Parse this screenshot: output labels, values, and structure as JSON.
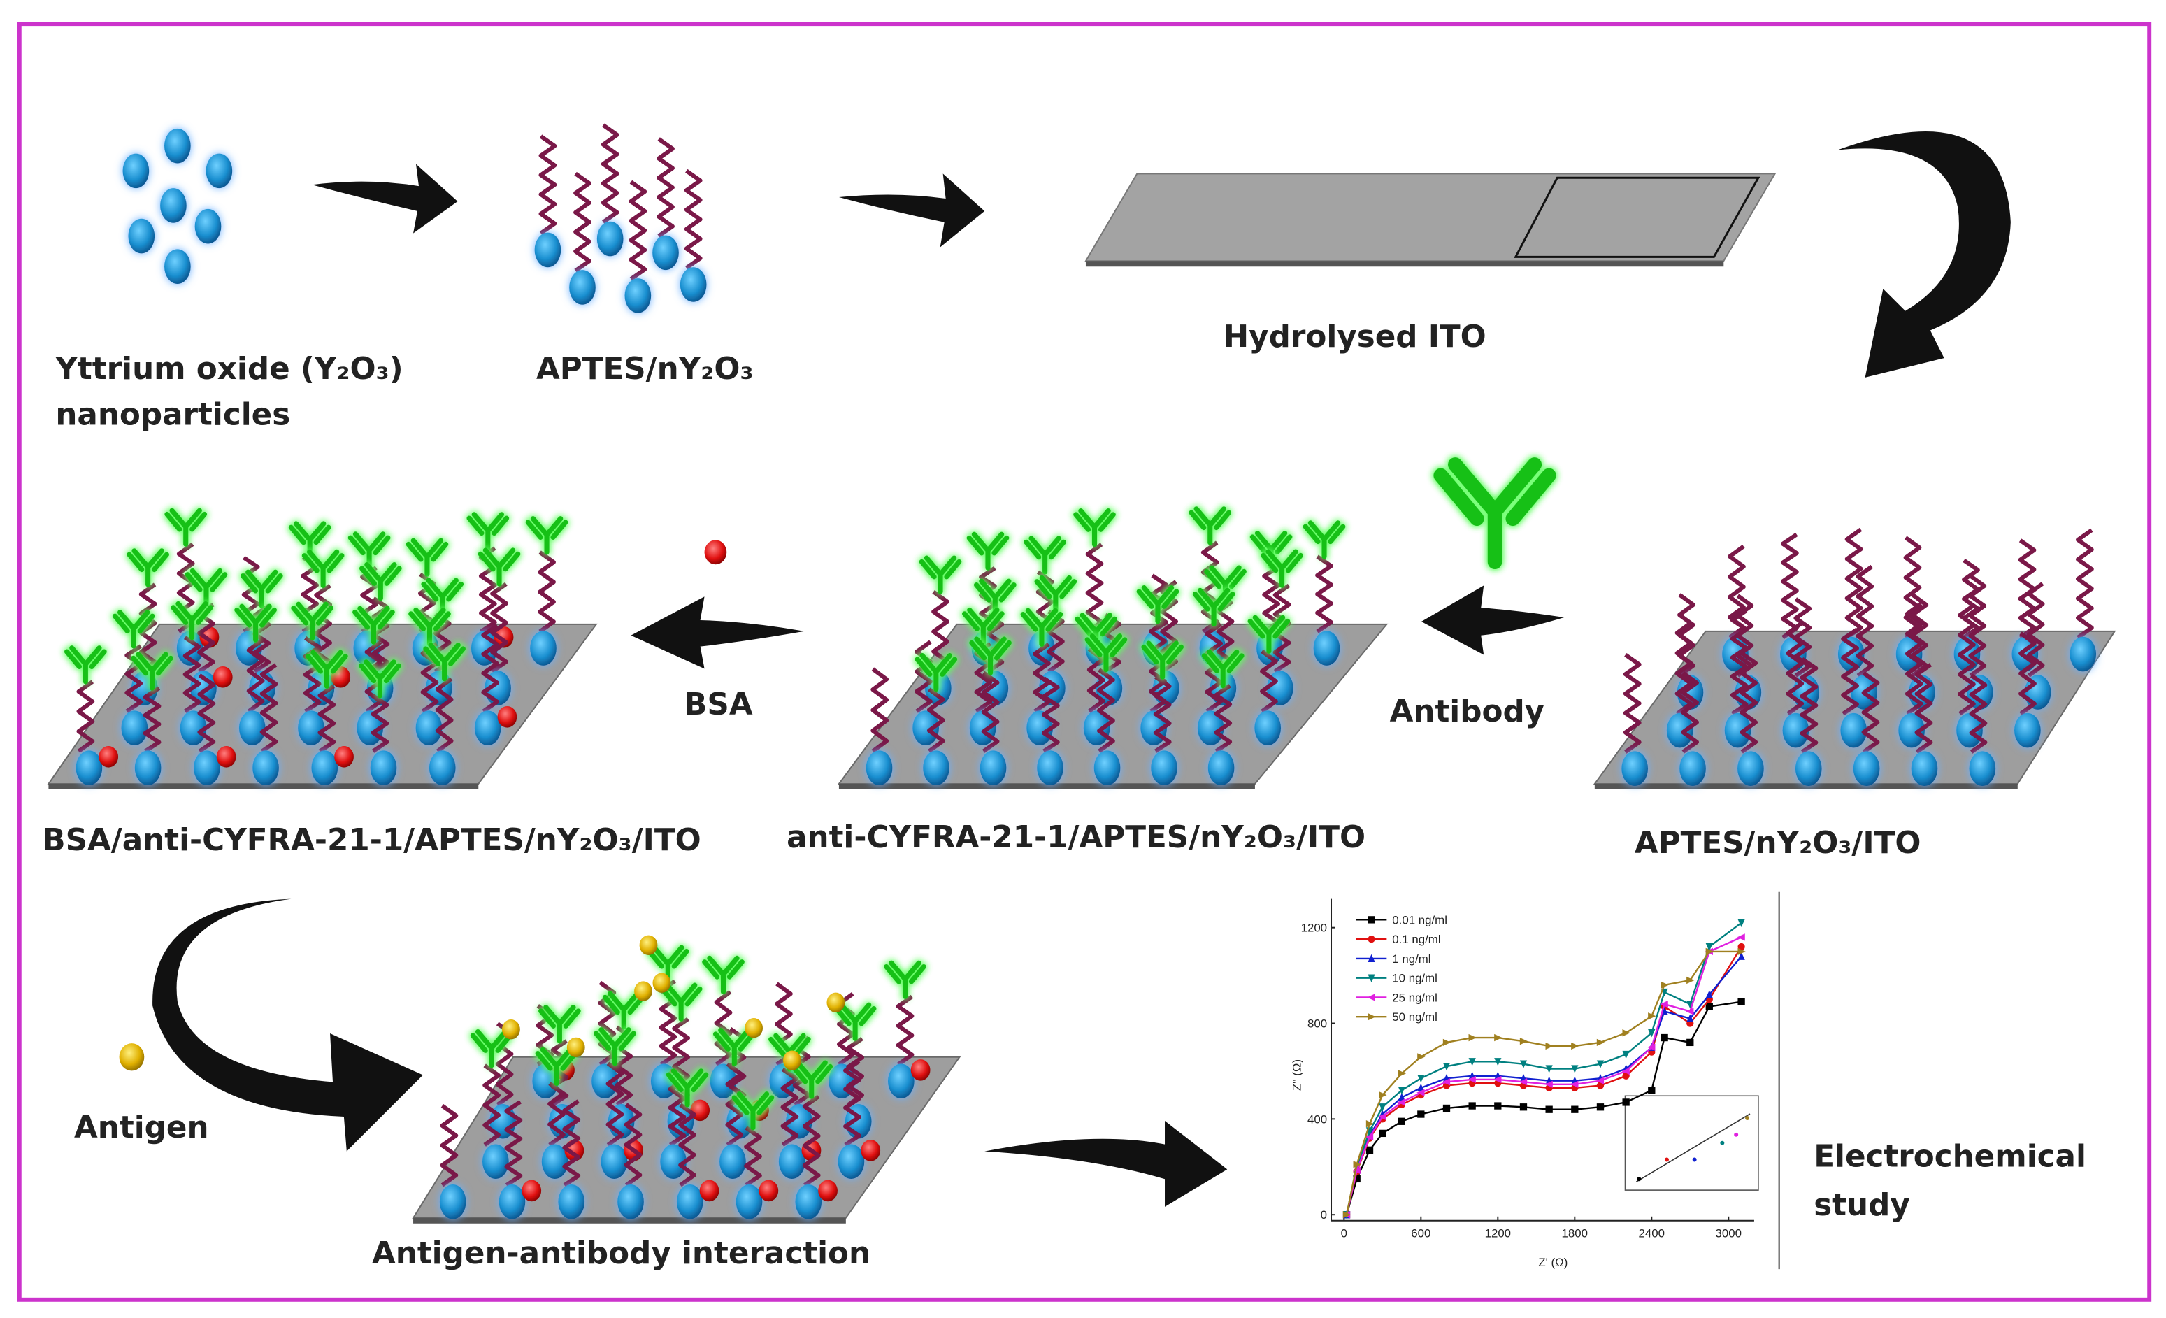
{
  "labels": {
    "nanoparticles_line1": "Yttrium oxide (Y₂O₃)",
    "nanoparticles_line2": "nanoparticles",
    "aptes": "APTES/nY₂O₃",
    "ito": "Hydrolysed ITO",
    "bsa": "BSA",
    "antibody": "Antibody",
    "bsa_electrode": "BSA/anti-CYFRA-21-1/APTES/nY₂O₃/ITO",
    "antibody_electrode": "anti-CYFRA-21-1/APTES/nY₂O₃/ITO",
    "aptes_electrode": "APTES/nY₂O₃/ITO",
    "antigen": "Antigen",
    "interaction": "Antigen-antibody interaction",
    "study_line1": "Electrochemical",
    "study_line2": "study"
  },
  "chart_data": {
    "type": "line",
    "xlabel": "Z' (Ω)",
    "ylabel": "Z'' (Ω)",
    "xlim": [
      -100,
      3200
    ],
    "ylim": [
      -25,
      1320
    ],
    "xticks": [
      0,
      600,
      1200,
      1800,
      2400,
      3000
    ],
    "yticks": [
      0,
      400,
      800,
      1200
    ],
    "x": [
      20,
      100,
      200,
      300,
      450,
      600,
      800,
      1000,
      1200,
      1400,
      1600,
      1800,
      2000,
      2200,
      2400,
      2500,
      2700,
      2850,
      3100
    ],
    "series": [
      {
        "name": "0.01 ng/ml",
        "color": "#000000",
        "marker": "square",
        "values": [
          0,
          150,
          270,
          340,
          390,
          420,
          445,
          455,
          455,
          450,
          440,
          440,
          450,
          470,
          520,
          740,
          720,
          870,
          890
        ]
      },
      {
        "name": "0.1 ng/ml",
        "color": "#e01010",
        "marker": "circle",
        "values": [
          0,
          180,
          320,
          400,
          460,
          500,
          540,
          550,
          550,
          540,
          530,
          530,
          540,
          580,
          680,
          870,
          800,
          900,
          1120
        ]
      },
      {
        "name": "1 ng/ml",
        "color": "#1020d0",
        "marker": "up",
        "values": [
          0,
          190,
          330,
          420,
          490,
          530,
          570,
          580,
          580,
          570,
          560,
          560,
          570,
          610,
          700,
          850,
          820,
          920,
          1080
        ]
      },
      {
        "name": "10 ng/ml",
        "color": "#008080",
        "marker": "down",
        "values": [
          0,
          200,
          350,
          450,
          520,
          570,
          620,
          640,
          640,
          630,
          610,
          610,
          630,
          670,
          760,
          930,
          880,
          1120,
          1220
        ]
      },
      {
        "name": "25 ng/ml",
        "color": "#e020e0",
        "marker": "left",
        "values": [
          0,
          185,
          325,
          410,
          470,
          510,
          555,
          565,
          565,
          555,
          545,
          545,
          560,
          600,
          700,
          880,
          850,
          1100,
          1160
        ]
      },
      {
        "name": "50 ng/ml",
        "color": "#a08020",
        "marker": "right",
        "values": [
          0,
          210,
          380,
          500,
          590,
          660,
          720,
          740,
          740,
          725,
          705,
          705,
          720,
          760,
          830,
          960,
          980,
          1100,
          1100
        ]
      }
    ]
  }
}
